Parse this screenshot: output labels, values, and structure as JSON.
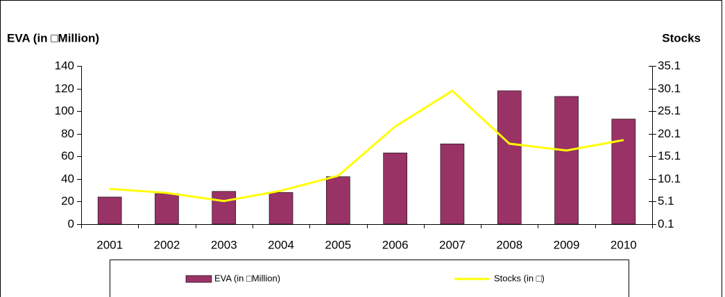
{
  "chart_data": {
    "type": "bar",
    "ylabel": "EVA (in □Million)",
    "y2label": "Stocks",
    "categories": [
      "2001",
      "2002",
      "2003",
      "2004",
      "2005",
      "2006",
      "2007",
      "2008",
      "2009",
      "2010"
    ],
    "series": [
      {
        "name": "EVA (in □Million)",
        "type": "bar",
        "color": "#993366",
        "values": [
          24,
          27,
          29,
          28,
          42,
          63,
          71,
          118,
          113,
          93
        ]
      },
      {
        "name": "Stocks (in □)",
        "type": "line",
        "axis": "y2",
        "color": "#ffff00",
        "values": [
          7.9,
          7.0,
          5.2,
          7.5,
          10.8,
          21.7,
          29.6,
          17.9,
          16.4,
          18.7
        ]
      }
    ],
    "ylim": [
      0,
      140
    ],
    "yticks": [
      0,
      20,
      40,
      60,
      80,
      100,
      120,
      140
    ],
    "y2lim": [
      0.1,
      35.1
    ],
    "y2ticks": [
      0.1,
      5.1,
      10.1,
      15.1,
      20.1,
      25.1,
      30.1,
      35.1
    ],
    "legend": "bottom"
  }
}
